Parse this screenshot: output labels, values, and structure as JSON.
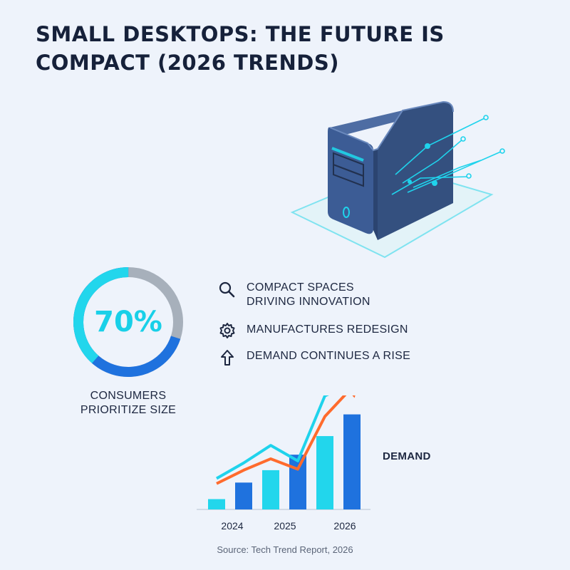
{
  "title": {
    "line1": "SMALL DESKTOPS: THE FUTURE IS",
    "line2": "COMPACT (2026 TRENDS)"
  },
  "hero": {
    "icon": "desktop-tower-icon"
  },
  "stat": {
    "value_text": "70%",
    "fraction": 0.7,
    "label_line1": "CONSUMERS",
    "label_line2": "PRIORITIZE SIZE"
  },
  "highlights": [
    {
      "icon": "search-icon",
      "line1": "COMPACT SPACES",
      "line2": "DRIVING INNOVATION"
    },
    {
      "icon": "gear-icon",
      "line1": "MANUFACTURES REDESIGN"
    },
    {
      "icon": "arrow-up-icon",
      "line1": "DEMAND CONTINUES A RISE"
    }
  ],
  "chart_data": {
    "type": "bar",
    "categories": [
      "",
      "2024",
      "",
      "2025",
      "",
      "2026"
    ],
    "tick_labels": [
      "2024",
      "2025",
      "2026"
    ],
    "values": [
      10,
      26,
      38,
      53,
      71,
      92
    ],
    "ylim": [
      0,
      100
    ],
    "series": [
      {
        "name": "Demand",
        "values": [
          10,
          26,
          38,
          53,
          71,
          92
        ]
      }
    ],
    "trend_lines": [
      {
        "color": "#1fd3ec",
        "values": [
          30,
          45,
          62,
          47,
          110,
          122
        ]
      },
      {
        "color": "#ff6b2d",
        "values": [
          25,
          38,
          49,
          39,
          90,
          118
        ]
      }
    ],
    "legend": "DEMAND",
    "xlabel": "",
    "ylabel": "",
    "title": "",
    "grid": false
  },
  "source": "Source: Tech Trend Report, 2026",
  "colors": {
    "accent": "#19d0e8",
    "primary_blue": "#1f72de",
    "donut_track": "#a7b0bb",
    "trend_orange": "#ff6b2d",
    "case": "#34507f"
  }
}
